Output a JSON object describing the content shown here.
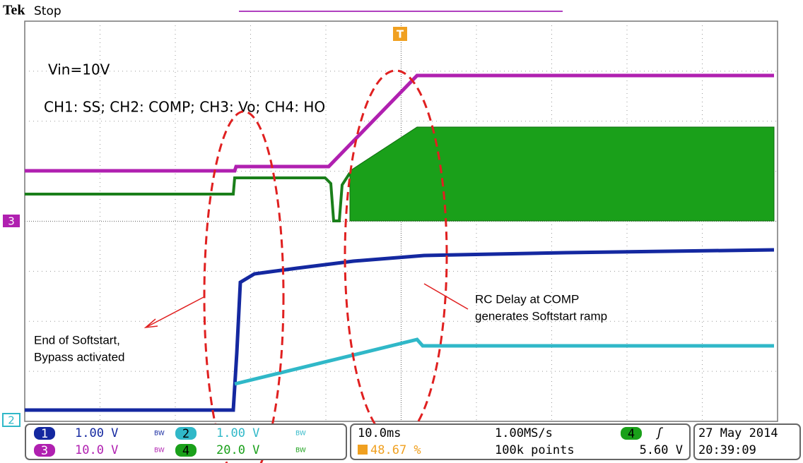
{
  "header": {
    "brand": "Tek",
    "status": "Stop"
  },
  "annotations": {
    "vin": "Vin=10V",
    "channels": "CH1: SS; CH2: COMP; CH3: Vo; CH4: HO",
    "bypass": [
      "End of Softstart,",
      "Bypass activated"
    ],
    "rc_delay": [
      "RC Delay at COMP",
      "generates Softstart ramp"
    ]
  },
  "markers": {
    "ch3": "3",
    "ch2": "2",
    "trigger": "T"
  },
  "readout": {
    "channels": [
      {
        "number": "1",
        "scale": "1.00 V",
        "bw": "BW"
      },
      {
        "number": "2",
        "scale": "1.00 V",
        "bw": "BW"
      },
      {
        "number": "3",
        "scale": "10.0 V",
        "bw": "BW"
      },
      {
        "number": "4",
        "scale": "20.0 V",
        "bw": "BW"
      }
    ],
    "timebase": "10.0ms",
    "sample_rate": "1.00MS/s",
    "trigger_position": "48.67 %",
    "record_length": "100k points",
    "trigger_source": "4",
    "trigger_level": "5.60 V",
    "date": "27 May 2014",
    "time": "20:39:09"
  }
}
